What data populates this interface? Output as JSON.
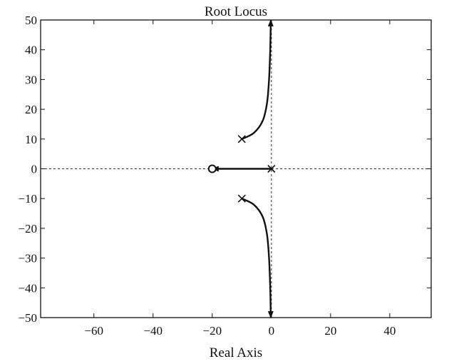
{
  "chart_data": {
    "type": "line",
    "title": "Root Locus",
    "xlabel": "Real Axis",
    "ylabel": "",
    "xlim": [
      -78,
      54
    ],
    "ylim": [
      -50,
      50
    ],
    "xticks": [
      -60,
      -40,
      -20,
      0,
      20,
      40
    ],
    "yticks": [
      50,
      40,
      30,
      20,
      10,
      0,
      -10,
      -20,
      -30,
      -40,
      -50
    ],
    "xtick_labels": [
      "−60",
      "−40",
      "−20",
      "0",
      "20",
      "40"
    ],
    "ytick_labels": [
      "50",
      "40",
      "30",
      "20",
      "10",
      "0",
      "−10",
      "−20",
      "−30",
      "−40",
      "−50"
    ],
    "grid": false,
    "reference_lines": {
      "x": 0,
      "y": 0
    },
    "poles": [
      {
        "x": -10,
        "y": 10
      },
      {
        "x": -10,
        "y": -10
      },
      {
        "x": 0,
        "y": 0
      }
    ],
    "zeros": [
      {
        "x": -20,
        "y": 0
      }
    ],
    "series": [
      {
        "points": [
          [
            -10,
            10
          ],
          [
            -6,
            12
          ],
          [
            -3,
            16
          ],
          [
            -1.5,
            22
          ],
          [
            -0.8,
            30
          ],
          [
            -0.4,
            40
          ],
          [
            -0.2,
            50
          ]
        ]
      },
      {
        "points": [
          [
            -10,
            -10
          ],
          [
            -6,
            -12
          ],
          [
            -3,
            -16
          ],
          [
            -1.5,
            -22
          ],
          [
            -0.8,
            -30
          ],
          [
            -0.4,
            -40
          ],
          [
            -0.2,
            -50
          ]
        ]
      },
      {
        "points": [
          [
            0,
            0
          ],
          [
            -20,
            0
          ]
        ]
      }
    ],
    "colors": {
      "line": "#111111",
      "axes": "#111111",
      "reference": "#333333"
    }
  }
}
